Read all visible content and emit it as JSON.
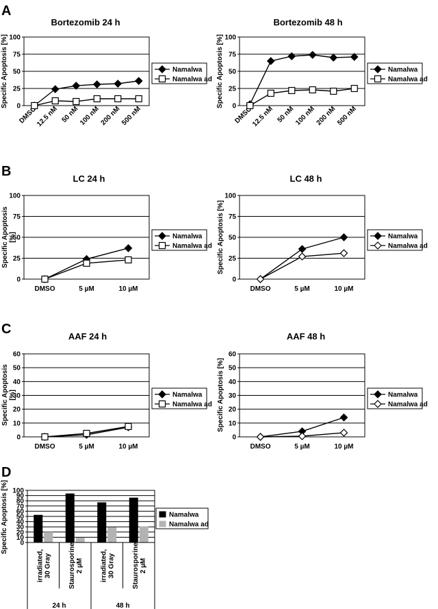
{
  "panels": [
    {
      "letter": "A"
    },
    {
      "letter": "B"
    },
    {
      "letter": "C"
    },
    {
      "letter": "D"
    }
  ],
  "chart_data": [
    {
      "panel": "A",
      "type": "line",
      "title": "Bortezomib 24 h",
      "ylabel": "Specific Apoptosis [%]",
      "ylim": [
        0,
        100
      ],
      "yticks": [
        0,
        25,
        50,
        75,
        100
      ],
      "categories": [
        "DMSO",
        "12.5 nM",
        "50 nM",
        "100 nM",
        "200 nM",
        "500 nM"
      ],
      "xlabel_rotated": true,
      "grid": "horizontal",
      "legend": "right",
      "series": [
        {
          "name": "Namalwa",
          "marker": "diamond-filled",
          "values": [
            0,
            24,
            29,
            31,
            32,
            36
          ]
        },
        {
          "name": "Namalwa ad",
          "marker": "square-open",
          "values": [
            0,
            7,
            6,
            10,
            10,
            10
          ]
        }
      ]
    },
    {
      "panel": "A",
      "type": "line",
      "title": "Bortezomib 48 h",
      "ylabel": "Specific Apoptosis [%]",
      "ylim": [
        0,
        100
      ],
      "yticks": [
        0,
        25,
        50,
        75,
        100
      ],
      "categories": [
        "DMSO",
        "12.5 nM",
        "50 nM",
        "100 nM",
        "200 nM",
        "500 nM"
      ],
      "xlabel_rotated": true,
      "grid": "horizontal",
      "legend": "right",
      "series": [
        {
          "name": "Namalwa",
          "marker": "diamond-filled",
          "values": [
            2,
            65,
            72,
            74,
            70,
            71
          ]
        },
        {
          "name": "Namalwa ad",
          "marker": "square-open",
          "values": [
            0,
            18,
            22,
            23,
            21,
            25
          ]
        }
      ]
    },
    {
      "panel": "B",
      "type": "line",
      "title": "LC 24 h",
      "ylabel": "Specific Apoptosis\n[%]",
      "ylim": [
        0,
        100
      ],
      "yticks": [
        0,
        25,
        50,
        75,
        100
      ],
      "categories": [
        "DMSO",
        "5 µM",
        "10 µM"
      ],
      "xlabel_rotated": false,
      "grid": "horizontal",
      "legend": "right",
      "series": [
        {
          "name": "Namalwa",
          "marker": "diamond-filled",
          "values": [
            0,
            24,
            37
          ]
        },
        {
          "name": "Namalwa ad",
          "marker": "square-open",
          "values": [
            0,
            19,
            23
          ]
        }
      ]
    },
    {
      "panel": "B",
      "type": "line",
      "title": "LC 48 h",
      "ylabel": "Specific Apoptosis [%]",
      "ylim": [
        0,
        100
      ],
      "yticks": [
        0,
        25,
        50,
        75,
        100
      ],
      "categories": [
        "DMSO",
        "5 µM",
        "10 µM"
      ],
      "xlabel_rotated": false,
      "grid": "horizontal",
      "legend": "right",
      "series": [
        {
          "name": "Namalwa",
          "marker": "diamond-filled",
          "values": [
            0,
            36,
            50
          ]
        },
        {
          "name": "Namalwa ad",
          "marker": "diamond-open",
          "values": [
            0,
            27,
            31
          ]
        }
      ]
    },
    {
      "panel": "C",
      "type": "line",
      "title": "AAF 24 h",
      "ylabel": "Specific Apoptosis\n[%]",
      "ylim": [
        0,
        60
      ],
      "yticks": [
        0,
        10,
        20,
        30,
        40,
        50,
        60
      ],
      "categories": [
        "DMSO",
        "5 µM",
        "10 µM"
      ],
      "xlabel_rotated": false,
      "grid": "horizontal",
      "legend": "right",
      "series": [
        {
          "name": "Namalwa",
          "marker": "diamond-filled",
          "values": [
            0,
            1.5,
            7
          ]
        },
        {
          "name": "Namalwa ad",
          "marker": "square-open",
          "values": [
            0,
            2.5,
            7.5
          ]
        }
      ]
    },
    {
      "panel": "C",
      "type": "line",
      "title": "AAF 48 h",
      "ylabel": "Specific Apoptosis [%]",
      "ylim": [
        0,
        60
      ],
      "yticks": [
        0,
        10,
        20,
        30,
        40,
        50,
        60
      ],
      "categories": [
        "DMSO",
        "5 µM",
        "10 µM"
      ],
      "xlabel_rotated": false,
      "grid": "horizontal",
      "legend": "right",
      "series": [
        {
          "name": "Namalwa",
          "marker": "diamond-filled",
          "values": [
            0,
            4,
            14
          ]
        },
        {
          "name": "Namalwa ad",
          "marker": "diamond-open",
          "values": [
            0,
            0.5,
            3
          ]
        }
      ]
    },
    {
      "panel": "D",
      "type": "bar",
      "ylabel": "Specific Apoptosis [%]",
      "ylim": [
        0,
        100
      ],
      "yticks": [
        0,
        10,
        20,
        30,
        40,
        50,
        60,
        70,
        80,
        90,
        100
      ],
      "categories": [
        "irradiated,\n30 Gray",
        "Staurosporine\n2 µM",
        "irradiated,\n30 Gray",
        "Staurosporine\n2 µM"
      ],
      "groups": [
        "24 h",
        "48 h"
      ],
      "grid": "horizontal",
      "legend": "right",
      "series": [
        {
          "name": "Namalwa",
          "color": "#000000",
          "values": [
            53,
            94,
            77,
            86
          ]
        },
        {
          "name": "Namalwa ad",
          "color": "#b3b3b3",
          "values": [
            20,
            9,
            29,
            31
          ]
        }
      ]
    }
  ]
}
